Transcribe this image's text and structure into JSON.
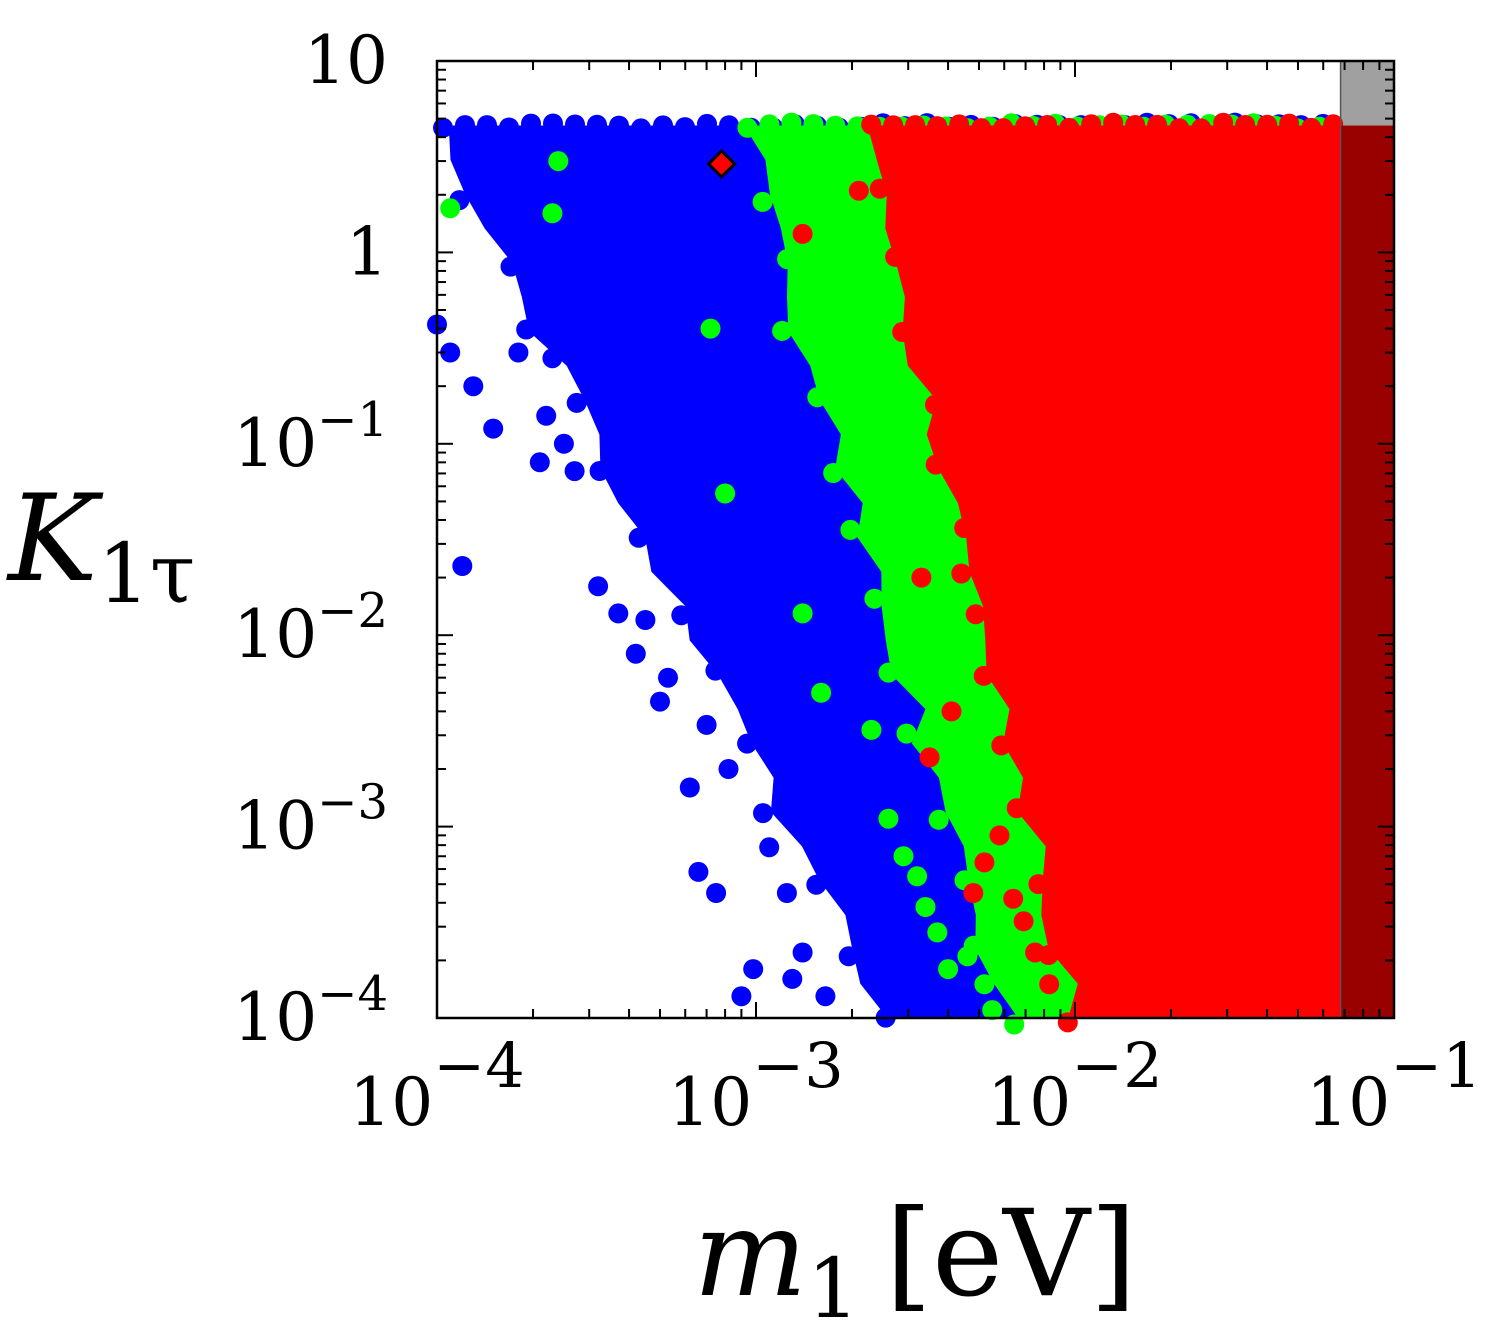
{
  "chart_data": {
    "type": "scatter",
    "title": "",
    "xlabel": {
      "symbol": "m",
      "subscript": "1",
      "unit": "[eV]"
    },
    "ylabel": {
      "symbol": "K",
      "subscript": "1τ"
    },
    "x_scale": "log",
    "y_scale": "log",
    "xlim": [
      0.0001,
      0.1
    ],
    "ylim": [
      0.0001,
      10
    ],
    "x_ticks": [
      {
        "value": 0.0001,
        "base": "10",
        "exp": "−4"
      },
      {
        "value": 0.001,
        "base": "10",
        "exp": "−3"
      },
      {
        "value": 0.01,
        "base": "10",
        "exp": "−2"
      },
      {
        "value": 0.1,
        "base": "10",
        "exp": "−1"
      }
    ],
    "y_ticks": [
      {
        "value": 0.0001,
        "base": "10",
        "exp": "−4"
      },
      {
        "value": 0.001,
        "base": "10",
        "exp": "−3"
      },
      {
        "value": 0.01,
        "base": "10",
        "exp": "−2"
      },
      {
        "value": 0.1,
        "base": "10",
        "exp": "−1"
      },
      {
        "value": 1,
        "base": "1",
        "exp": ""
      },
      {
        "value": 10,
        "base": "10",
        "exp": ""
      }
    ],
    "grid": false,
    "legend": "none",
    "colors": {
      "blue": "#0000ff",
      "green": "#00ff00",
      "red": "#ff0000",
      "excluded": "#a0a0a0",
      "excluded_overlap": "#990000",
      "marker": "#ff0000"
    },
    "excluded_band": {
      "x_from": 0.068,
      "x_to": 0.1
    },
    "series": [
      {
        "color": "blue",
        "region": {
          "ymax": 4.6,
          "xmin_at_low_y": 0.0025,
          "xmin_at_high_y": 0.0001
        },
        "outliers": [
          [
            0.0001,
            0.42
          ],
          [
            0.00011,
            0.3
          ],
          [
            0.00012,
            0.023
          ],
          [
            0.00013,
            0.2
          ],
          [
            0.00015,
            0.12
          ],
          [
            0.00018,
            0.3
          ],
          [
            0.00021,
            0.08
          ],
          [
            0.00022,
            0.14
          ],
          [
            0.00023,
            0.28
          ],
          [
            0.00025,
            0.1
          ],
          [
            0.00027,
            0.072
          ],
          [
            0.00032,
            0.018
          ],
          [
            0.00037,
            0.013
          ],
          [
            0.00042,
            0.008
          ],
          [
            0.00045,
            0.012
          ],
          [
            0.0005,
            0.0045
          ],
          [
            0.00053,
            0.006
          ],
          [
            0.00058,
            0.019
          ],
          [
            0.00062,
            0.0016
          ],
          [
            0.00066,
            0.00058
          ],
          [
            0.0007,
            0.0034
          ],
          [
            0.00075,
            0.00045
          ],
          [
            0.00082,
            0.002
          ],
          [
            0.00088,
            0.0062
          ],
          [
            0.0009,
            0.00013
          ],
          [
            0.00098,
            0.00018
          ],
          [
            0.00105,
            0.0035
          ],
          [
            0.0011,
            0.00078
          ],
          [
            0.00118,
            0.0038
          ],
          [
            0.00125,
            0.00045
          ],
          [
            0.0013,
            0.00016
          ],
          [
            0.0014,
            0.00022
          ],
          [
            0.00148,
            0.0035
          ],
          [
            0.00155,
            0.0026
          ],
          [
            0.00165,
            0.00013
          ],
          [
            0.0018,
            0.00052
          ],
          [
            0.0019,
            0.0009
          ],
          [
            0.002,
            0.00058
          ],
          [
            0.0021,
            0.00037
          ],
          [
            0.0023,
            0.00019
          ],
          [
            0.0025,
            0.00026
          ],
          [
            0.0028,
            0.00038
          ],
          [
            0.0031,
            0.00017
          ],
          [
            0.0035,
            0.00012
          ]
        ]
      },
      {
        "color": "green",
        "region": {
          "ymax": 4.6,
          "xmin_at_low_y": 0.006,
          "xmin_at_high_y": 0.0009
        },
        "outliers": [
          [
            0.00011,
            1.7
          ],
          [
            0.00023,
            1.6
          ],
          [
            0.00024,
            3.0
          ],
          [
            0.00072,
            0.4
          ],
          [
            0.0008,
            0.055
          ],
          [
            0.0014,
            0.013
          ],
          [
            0.0016,
            0.005
          ],
          [
            0.0023,
            0.0032
          ],
          [
            0.0026,
            0.0011
          ],
          [
            0.0029,
            0.0007
          ],
          [
            0.0032,
            0.00055
          ],
          [
            0.0034,
            0.00038
          ],
          [
            0.0037,
            0.00028
          ],
          [
            0.004,
            0.00018
          ],
          [
            0.0046,
            0.00021
          ],
          [
            0.0052,
            0.00015
          ],
          [
            0.0055,
            0.00011
          ]
        ]
      },
      {
        "color": "red",
        "region": {
          "ymax": 4.6,
          "xmin_at_low_y": 0.0098,
          "xmin_at_high_y": 0.0022
        },
        "outliers": [
          [
            0.0014,
            1.25
          ],
          [
            0.0021,
            2.1
          ],
          [
            0.0033,
            0.02
          ],
          [
            0.0035,
            0.0023
          ],
          [
            0.0041,
            0.004
          ],
          [
            0.0044,
            0.021
          ],
          [
            0.0048,
            0.00045
          ],
          [
            0.0052,
            0.00065
          ],
          [
            0.0058,
            0.0009
          ],
          [
            0.0064,
            0.00042
          ],
          [
            0.0069,
            0.00032
          ],
          [
            0.0075,
            0.00022
          ],
          [
            0.0083,
            0.00015
          ]
        ]
      },
      {
        "color": "marker",
        "shape": "diamond",
        "points": [
          [
            0.00078,
            2.9
          ]
        ]
      }
    ]
  }
}
